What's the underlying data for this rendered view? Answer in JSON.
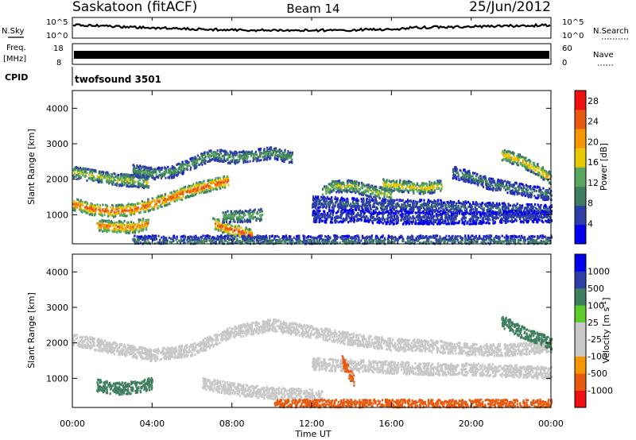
{
  "header": {
    "station": "Saskatoon (fitACF)",
    "beam": "Beam 14",
    "date": "25/Jun/2012"
  },
  "noise_panel": {
    "left_label": "N.Sky",
    "left_ticks": [
      "10^5",
      "10^0"
    ],
    "right_label": "N.Search",
    "right_ticks": [
      "10^5",
      "10^0"
    ]
  },
  "freq_panel": {
    "left_label_1": "Freq.",
    "left_label_2": "[MHz]",
    "left_ticks": [
      "18",
      "8"
    ],
    "right_label": "Nave",
    "right_ticks": [
      "60",
      "0"
    ]
  },
  "cpid_panel": {
    "left_label": "CPID",
    "program": "twofsound 3501"
  },
  "colors": {
    "power_scale": [
      "#0000ee",
      "#2d3fa6",
      "#3f7f5f",
      "#59a85f",
      "#e8c800",
      "#f59500",
      "#e85a10",
      "#ee1010"
    ],
    "velocity_scale": [
      "#ee1010",
      "#e85a10",
      "#f59500",
      "#c8c8c8",
      "#c8c8c8",
      "#5ccc2c",
      "#3f7f5f",
      "#2d3fa6",
      "#0000ee"
    ]
  },
  "chart_data": [
    {
      "type": "heatmap",
      "panel": "power",
      "xlabel": "Time UT",
      "ylabel": "Slant Range [km]",
      "xlim": [
        0,
        24
      ],
      "ylim": [
        180,
        4500
      ],
      "x_ticks": [
        "00:00",
        "04:00",
        "08:00",
        "12:00",
        "16:00",
        "20:00",
        "00:00"
      ],
      "y_ticks": [
        "1000",
        "2000",
        "3000",
        "4000"
      ],
      "colorbar_label": "Power [dB]",
      "colorbar_ticks": [
        "4",
        "8",
        "12",
        "16",
        "20",
        "24",
        "28"
      ],
      "colorbar_range": [
        0,
        30
      ],
      "bands": [
        {
          "t": [
            0,
            1,
            2,
            3,
            4,
            5,
            6,
            7,
            7.8
          ],
          "r": [
            1300,
            1150,
            1100,
            1150,
            1300,
            1500,
            1700,
            1850,
            1950
          ],
          "value": 26
        },
        {
          "t": [
            0,
            1,
            2,
            3,
            3.8
          ],
          "r": [
            2200,
            2100,
            2000,
            1950,
            1900
          ],
          "value": 16
        },
        {
          "t": [
            1.2,
            2,
            3,
            3.8
          ],
          "r": [
            700,
            650,
            650,
            750
          ],
          "value": 24
        },
        {
          "t": [
            3,
            4,
            5,
            6,
            7,
            8,
            9,
            10,
            11
          ],
          "r": [
            2250,
            2150,
            2200,
            2450,
            2700,
            2600,
            2650,
            2750,
            2600
          ],
          "value": 12
        },
        {
          "t": [
            7,
            7.8,
            8.5,
            9
          ],
          "r": [
            750,
            600,
            500,
            400
          ],
          "value": 26
        },
        {
          "t": [
            7.5,
            8.5,
            9.5
          ],
          "r": [
            950,
            950,
            1000
          ],
          "value": 14
        },
        {
          "t": [
            12.5,
            13,
            14,
            15,
            16
          ],
          "r": [
            1600,
            1800,
            1800,
            1650,
            1550
          ],
          "value": 16
        },
        {
          "t": [
            12,
            14,
            16,
            18,
            20,
            22,
            24
          ],
          "r": [
            1350,
            1300,
            1250,
            1250,
            1200,
            1150,
            1100
          ],
          "value": 8
        },
        {
          "t": [
            12,
            14,
            16,
            18,
            20,
            22,
            24
          ],
          "r": [
            950,
            950,
            900,
            900,
            900,
            950,
            950
          ],
          "value": 6
        },
        {
          "t": [
            15.5,
            16.5,
            17.5,
            18.5
          ],
          "r": [
            1850,
            1800,
            1750,
            1800
          ],
          "value": 18
        },
        {
          "t": [
            19,
            20,
            21,
            22,
            23,
            24
          ],
          "r": [
            2200,
            2050,
            1850,
            1750,
            1650,
            1550
          ],
          "value": 10
        },
        {
          "t": [
            21.5,
            22.5,
            23.2,
            24
          ],
          "r": [
            2700,
            2500,
            2300,
            2000
          ],
          "value": 20
        },
        {
          "t": [
            3,
            6,
            9,
            12,
            15,
            18,
            21,
            24
          ],
          "r": [
            240,
            240,
            240,
            240,
            240,
            240,
            240,
            240
          ],
          "value": 9
        }
      ]
    },
    {
      "type": "heatmap",
      "panel": "velocity",
      "xlabel": "Time UT",
      "ylabel": "Slant Range [km]",
      "xlim": [
        0,
        24
      ],
      "ylim": [
        180,
        4500
      ],
      "x_ticks": [
        "00:00",
        "04:00",
        "08:00",
        "12:00",
        "16:00",
        "20:00",
        "00:00"
      ],
      "y_ticks": [
        "1000",
        "2000",
        "3000",
        "4000"
      ],
      "colorbar_label": "Velocity [m s^-1]",
      "colorbar_ticks": [
        "1000",
        "500",
        "100",
        "25",
        "-25",
        "-100",
        "-500",
        "-1000"
      ],
      "bands": [
        {
          "t": [
            0,
            2,
            4,
            6,
            8,
            10,
            12,
            14,
            16,
            18,
            20,
            22,
            24
          ],
          "r": [
            2100,
            1850,
            1650,
            1800,
            2300,
            2500,
            2300,
            2100,
            1950,
            1900,
            1800,
            1800,
            1900
          ],
          "value": 0
        },
        {
          "t": [
            1.2,
            2.2,
            3.2,
            4
          ],
          "r": [
            800,
            700,
            750,
            850
          ],
          "value": 300
        },
        {
          "t": [
            6.5,
            8,
            9.5,
            11,
            12.5
          ],
          "r": [
            850,
            700,
            600,
            550,
            500
          ],
          "value": 0
        },
        {
          "t": [
            12,
            14,
            16,
            18,
            20,
            22,
            24
          ],
          "r": [
            1400,
            1350,
            1300,
            1250,
            1250,
            1200,
            1150
          ],
          "value": 0
        },
        {
          "t": [
            21.5,
            22.5,
            23.5,
            24
          ],
          "r": [
            2600,
            2300,
            2100,
            1950
          ],
          "value": 200
        },
        {
          "t": [
            10,
            13,
            16,
            19,
            22,
            24
          ],
          "r": [
            230,
            230,
            230,
            230,
            230,
            230
          ],
          "value": -180
        },
        {
          "t": [
            13.5,
            13.8,
            14.1
          ],
          "r": [
            1500,
            1200,
            900
          ],
          "value": -400
        }
      ]
    }
  ]
}
